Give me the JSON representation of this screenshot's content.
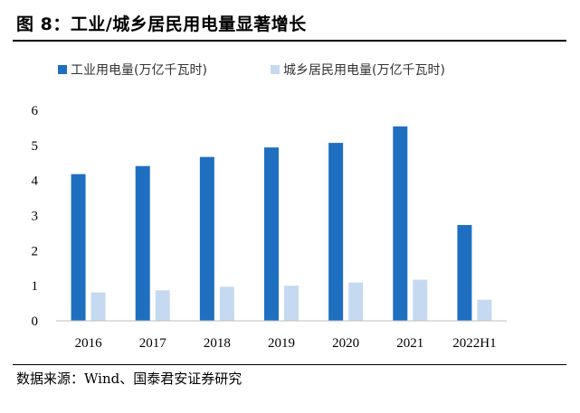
{
  "title": "图 8：工业/城乡居民用电量显著增长",
  "source": "数据来源：Wind、国泰君安证券研究",
  "chart_data": {
    "type": "bar",
    "title": "图 8：工业/城乡居民用电量显著增长",
    "xlabel": "",
    "ylabel": "",
    "ylim": [
      0,
      6
    ],
    "yticks": [
      "0",
      "1",
      "2",
      "3",
      "4",
      "5",
      "6"
    ],
    "categories": [
      "2016",
      "2017",
      "2018",
      "2019",
      "2020",
      "2021",
      "2022H1"
    ],
    "series": [
      {
        "name": "工业用电量(万亿千瓦时)",
        "color": "#1f6fc0",
        "values": [
          4.18,
          4.41,
          4.67,
          4.94,
          5.07,
          5.54,
          2.73
        ]
      },
      {
        "name": "城乡居民用电量(万亿千瓦时)",
        "color": "#c5d9f1",
        "values": [
          0.81,
          0.87,
          0.97,
          1.0,
          1.09,
          1.17,
          0.6
        ]
      }
    ],
    "legend": "top",
    "grid": false
  }
}
